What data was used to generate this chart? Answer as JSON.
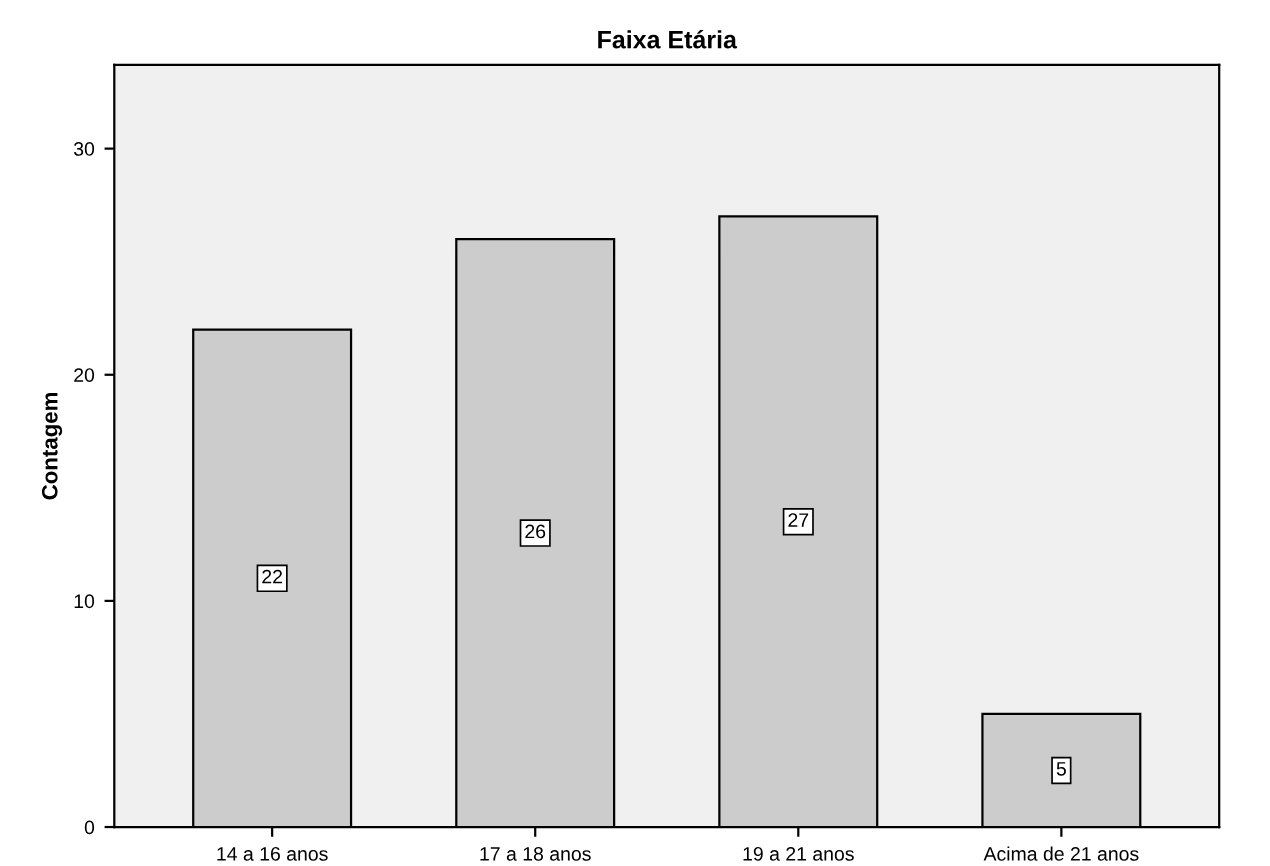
{
  "chart_data": {
    "type": "bar",
    "title": "Faixa Etária",
    "ylabel": "Contagem",
    "categories": [
      "14 a 16 anos",
      "17 a 18 anos",
      "19 a 21 anos",
      "Acima de 21 anos"
    ],
    "values": [
      22,
      26,
      27,
      5
    ],
    "color": "#cccccc",
    "ylim": [
      0,
      33.7
    ],
    "yticks": [
      0,
      10,
      20,
      30
    ],
    "grid": false,
    "data_labels": true
  }
}
